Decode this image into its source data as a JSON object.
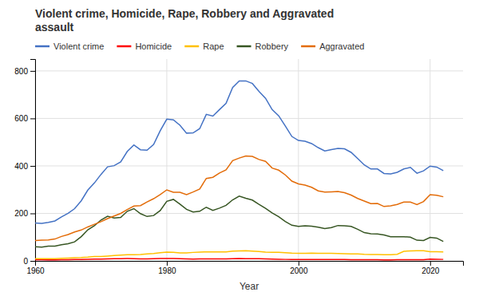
{
  "chart_data": {
    "type": "line",
    "title": "Violent crime, Homicide, Rape, Robbery and Aggravated\nassault",
    "x_label": "Year",
    "x": [
      1960,
      1961,
      1962,
      1963,
      1964,
      1965,
      1966,
      1967,
      1968,
      1969,
      1970,
      1971,
      1972,
      1973,
      1974,
      1975,
      1976,
      1977,
      1978,
      1979,
      1980,
      1981,
      1982,
      1983,
      1984,
      1985,
      1986,
      1987,
      1988,
      1989,
      1990,
      1991,
      1992,
      1993,
      1994,
      1995,
      1996,
      1997,
      1998,
      1999,
      2000,
      2001,
      2002,
      2003,
      2004,
      2005,
      2006,
      2007,
      2008,
      2009,
      2010,
      2011,
      2012,
      2013,
      2014,
      2015,
      2016,
      2017,
      2018,
      2019,
      2020,
      2021,
      2022
    ],
    "series": [
      {
        "name": "Violent crime",
        "color": "#4472c4",
        "values": [
          160,
          158,
          162,
          168,
          185,
          200,
          220,
          253,
          298,
          328,
          364,
          396,
          401,
          417,
          461,
          488,
          468,
          466,
          490,
          548,
          597,
          594,
          571,
          538,
          539,
          557,
          617,
          610,
          637,
          663,
          730,
          758,
          758,
          747,
          714,
          685,
          637,
          611,
          568,
          524,
          507,
          504,
          494,
          477,
          463,
          469,
          474,
          472,
          457,
          431,
          404,
          387,
          387,
          368,
          366,
          373,
          387,
          394,
          369,
          379,
          399,
          395,
          380
        ]
      },
      {
        "name": "Homicide",
        "color": "#ff0000",
        "values": [
          5.1,
          4.8,
          4.6,
          4.6,
          4.9,
          5.1,
          5.6,
          6.2,
          6.9,
          7.3,
          7.9,
          8.6,
          9.0,
          9.4,
          9.8,
          9.6,
          8.8,
          8.8,
          9.0,
          9.7,
          10.2,
          9.8,
          9.1,
          8.3,
          7.9,
          8.0,
          8.6,
          8.3,
          8.4,
          8.7,
          9.4,
          9.8,
          9.3,
          9.5,
          9.0,
          8.2,
          7.4,
          6.8,
          6.3,
          5.7,
          5.5,
          5.6,
          5.6,
          5.7,
          5.5,
          5.6,
          5.7,
          5.7,
          5.4,
          5.0,
          4.8,
          4.7,
          4.7,
          4.5,
          4.4,
          4.9,
          5.3,
          5.3,
          5.0,
          5.0,
          7.8,
          6.9,
          6.3
        ]
      },
      {
        "name": "Rape",
        "color": "#ffc000",
        "values": [
          9.6,
          9.4,
          9.4,
          9.4,
          11.2,
          12.1,
          13.2,
          14.0,
          15.9,
          18.5,
          18.7,
          20.5,
          22.5,
          24.5,
          26.2,
          26.3,
          26.6,
          29.4,
          31.0,
          34.7,
          36.8,
          36.0,
          34.0,
          33.7,
          35.7,
          37.1,
          37.9,
          37.4,
          37.6,
          38.1,
          41.2,
          42.3,
          42.8,
          41.1,
          39.3,
          37.1,
          36.3,
          35.9,
          34.5,
          32.8,
          32.0,
          31.8,
          33.1,
          32.1,
          32.2,
          31.7,
          30.9,
          30.0,
          29.7,
          29.1,
          27.5,
          26.8,
          26.9,
          25.9,
          26.4,
          28.1,
          40.4,
          41.7,
          42.6,
          42.6,
          38.4,
          38.5,
          38.0
        ]
      },
      {
        "name": "Robbery",
        "color": "#375623",
        "values": [
          60,
          58,
          62,
          62,
          68,
          72,
          80,
          102,
          131,
          148,
          172,
          188,
          181,
          183,
          209,
          220,
          199,
          187,
          191,
          212,
          251,
          259,
          239,
          217,
          206,
          209,
          226,
          213,
          222,
          234,
          257,
          273,
          264,
          256,
          238,
          221,
          202,
          186,
          166,
          150,
          145,
          148,
          146,
          142,
          136,
          140,
          149,
          148,
          145,
          133,
          119,
          114,
          113,
          109,
          102,
          102,
          102,
          100,
          87,
          86,
          99,
          96,
          82
        ]
      },
      {
        "name": "Aggravated",
        "color": "#e36c09",
        "values": [
          86,
          87,
          88,
          92,
          103,
          111,
          122,
          130,
          143,
          154,
          165,
          178,
          189,
          200,
          216,
          231,
          233,
          248,
          262,
          279,
          299,
          289,
          289,
          279,
          290,
          303,
          347,
          352,
          370,
          383,
          422,
          433,
          442,
          440,
          427,
          419,
          391,
          382,
          362,
          336,
          324,
          319,
          310,
          295,
          290,
          291,
          292,
          287,
          277,
          263,
          252,
          241,
          242,
          229,
          232,
          238,
          248,
          248,
          237,
          250,
          279,
          276,
          270
        ]
      }
    ],
    "xlim": [
      1960,
      2025
    ],
    "xticks": [
      1960,
      1980,
      2000,
      2020
    ],
    "ylim": [
      0,
      850
    ],
    "yticks": [
      0,
      200,
      400,
      600,
      800
    ],
    "grid": true,
    "legend": "top"
  }
}
